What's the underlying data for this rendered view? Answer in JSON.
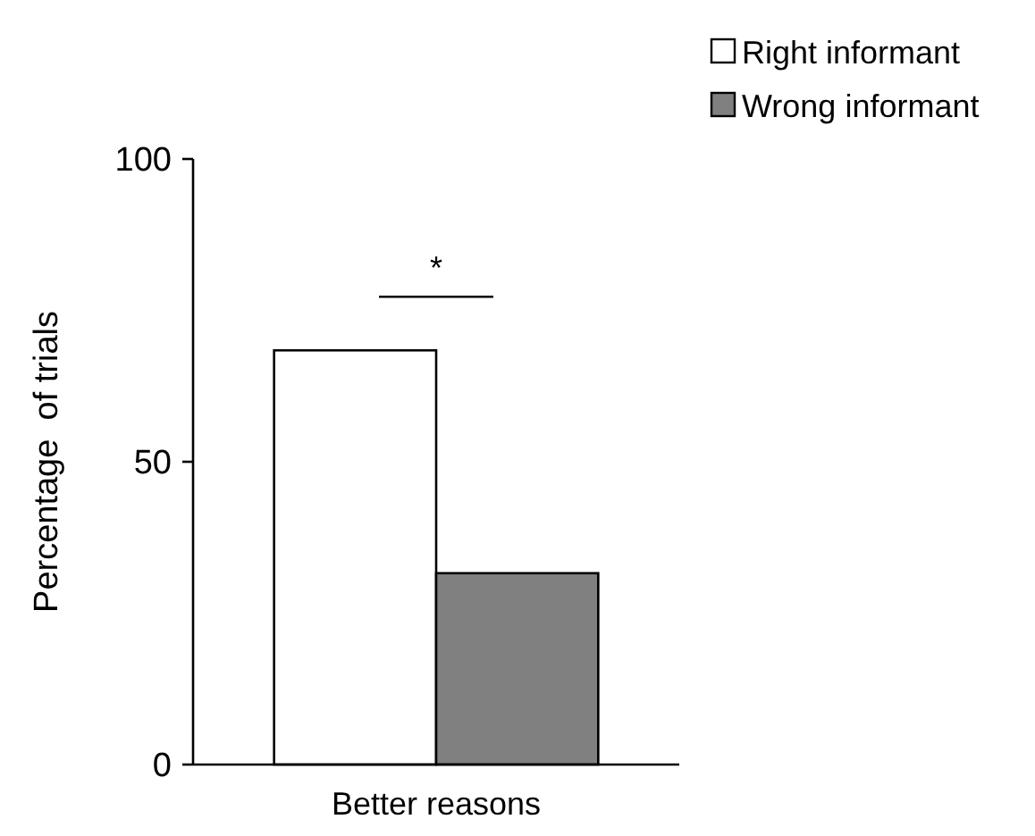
{
  "chart_data": {
    "type": "bar",
    "ylabel": "Percentage  of trials",
    "categories": [
      "Better reasons"
    ],
    "series": [
      {
        "name": "Right informant",
        "color": "#ffffff",
        "values": [
          68.4
        ]
      },
      {
        "name": "Wrong informant",
        "color": "#808080",
        "values": [
          31.6
        ]
      }
    ],
    "ylim": [
      0,
      100
    ],
    "yticks": [
      0,
      50,
      100
    ],
    "grid": false,
    "legend": "top right",
    "annotations": [
      "*"
    ]
  }
}
